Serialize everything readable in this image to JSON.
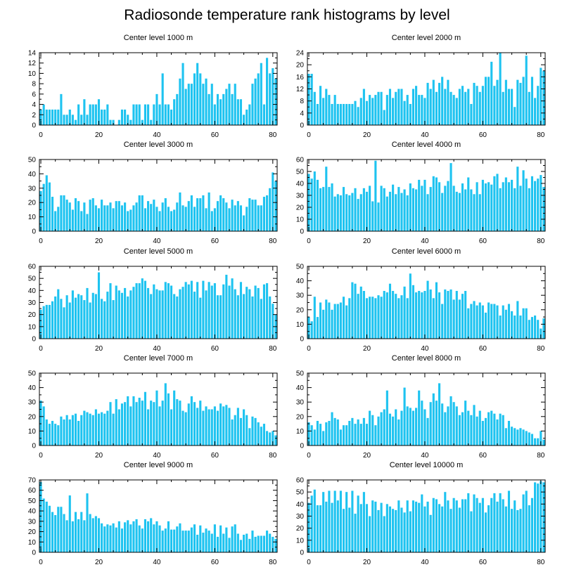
{
  "title": "Radiosonde temperature rank histograms by level",
  "colors": {
    "bar": "#1ec3f0",
    "axis": "#000000",
    "background": "#ffffff"
  },
  "chart_data": [
    {
      "type": "bar",
      "title": "Center level 1000 m",
      "xlabel": "",
      "ylabel": "",
      "xlim": [
        -0.5,
        81.5
      ],
      "ylim": [
        0,
        14
      ],
      "xticks": [
        0,
        20,
        40,
        60,
        80
      ],
      "yticks": [
        0,
        2,
        4,
        6,
        8,
        10,
        12,
        14
      ],
      "x_start": 0,
      "values": [
        3,
        4,
        3,
        3,
        3,
        3,
        3,
        6,
        2,
        2,
        3,
        2,
        1,
        4,
        2,
        5,
        2,
        4,
        4,
        4,
        5,
        3,
        3,
        4,
        1,
        1,
        0,
        1,
        3,
        3,
        2,
        1,
        4,
        4,
        4,
        1,
        4,
        4,
        1,
        4,
        6,
        4,
        10,
        4,
        4,
        3,
        5,
        6,
        9,
        12,
        7,
        8,
        8,
        10,
        12,
        10,
        8,
        9,
        6,
        8,
        4,
        6,
        5,
        6,
        7,
        8,
        6,
        8,
        5,
        5,
        2,
        3,
        4,
        8,
        9,
        10,
        12,
        4,
        13,
        10,
        11,
        9
      ]
    },
    {
      "type": "bar",
      "title": "Center level 2000 m",
      "xlabel": "",
      "ylabel": "",
      "xlim": [
        -0.5,
        81.5
      ],
      "ylim": [
        0,
        24
      ],
      "xticks": [
        0,
        20,
        40,
        60,
        80
      ],
      "yticks": [
        0,
        4,
        8,
        12,
        16,
        20,
        24
      ],
      "x_start": 0,
      "values": [
        17,
        17,
        11,
        7,
        13,
        9,
        12,
        10,
        7,
        10,
        7,
        7,
        7,
        7,
        7,
        7,
        8,
        6,
        9,
        12,
        8,
        10,
        9,
        10,
        11,
        11,
        5,
        10,
        12,
        9,
        11,
        12,
        12,
        8,
        10,
        7,
        12,
        13,
        10,
        10,
        9,
        14,
        12,
        15,
        11,
        14,
        16,
        12,
        15,
        11,
        10,
        9,
        12,
        13,
        11,
        12,
        7,
        14,
        13,
        11,
        13,
        16,
        16,
        21,
        13,
        15,
        24,
        11,
        15,
        12,
        12,
        6,
        15,
        14,
        16,
        23,
        11,
        16,
        9,
        13,
        19,
        18
      ]
    },
    {
      "type": "bar",
      "title": "Center level 3000 m",
      "xlabel": "",
      "ylabel": "",
      "xlim": [
        -0.5,
        81.5
      ],
      "ylim": [
        0,
        50
      ],
      "xticks": [
        0,
        20,
        40,
        60,
        80
      ],
      "yticks": [
        0,
        10,
        20,
        30,
        40,
        50
      ],
      "x_start": 0,
      "values": [
        28,
        33,
        39,
        34,
        24,
        14,
        17,
        25,
        25,
        22,
        20,
        15,
        23,
        21,
        14,
        20,
        12,
        22,
        23,
        18,
        16,
        22,
        18,
        18,
        20,
        16,
        21,
        21,
        18,
        20,
        14,
        15,
        18,
        20,
        25,
        25,
        16,
        21,
        19,
        22,
        17,
        14,
        20,
        23,
        17,
        14,
        15,
        20,
        27,
        18,
        17,
        21,
        25,
        17,
        23,
        23,
        25,
        16,
        27,
        14,
        16,
        21,
        25,
        23,
        20,
        16,
        22,
        18,
        21,
        18,
        11,
        17,
        23,
        22,
        22,
        18,
        18,
        24,
        25,
        30,
        41,
        35
      ]
    },
    {
      "type": "bar",
      "title": "Center level 4000 m",
      "xlabel": "",
      "ylabel": "",
      "xlim": [
        -0.5,
        81.5
      ],
      "ylim": [
        0,
        60
      ],
      "xticks": [
        0,
        20,
        40,
        60,
        80
      ],
      "yticks": [
        0,
        10,
        20,
        30,
        40,
        50,
        60
      ],
      "x_start": 0,
      "values": [
        48,
        44,
        50,
        43,
        36,
        37,
        54,
        37,
        40,
        29,
        31,
        30,
        37,
        31,
        30,
        32,
        36,
        27,
        31,
        36,
        33,
        38,
        25,
        59,
        24,
        38,
        36,
        29,
        33,
        39,
        31,
        37,
        32,
        35,
        30,
        40,
        36,
        35,
        43,
        38,
        43,
        31,
        37,
        46,
        45,
        41,
        32,
        38,
        42,
        57,
        38,
        33,
        32,
        40,
        35,
        45,
        35,
        31,
        41,
        31,
        43,
        40,
        41,
        39,
        46,
        48,
        36,
        41,
        45,
        41,
        43,
        36,
        54,
        38,
        51,
        44,
        36,
        46,
        42,
        44,
        47,
        37
      ]
    },
    {
      "type": "bar",
      "title": "Center level 5000 m",
      "xlabel": "",
      "ylabel": "",
      "xlim": [
        -0.5,
        81.5
      ],
      "ylim": [
        0,
        60
      ],
      "xticks": [
        0,
        20,
        40,
        60,
        80
      ],
      "yticks": [
        0,
        10,
        20,
        30,
        40,
        50,
        60
      ],
      "x_start": 0,
      "values": [
        24,
        27,
        28,
        28,
        31,
        35,
        41,
        33,
        26,
        36,
        30,
        40,
        34,
        37,
        36,
        32,
        42,
        30,
        38,
        37,
        55,
        33,
        31,
        39,
        46,
        32,
        44,
        40,
        38,
        42,
        35,
        40,
        43,
        46,
        46,
        50,
        48,
        42,
        37,
        45,
        41,
        40,
        40,
        47,
        46,
        44,
        37,
        35,
        41,
        43,
        47,
        45,
        48,
        39,
        47,
        34,
        48,
        40,
        47,
        44,
        46,
        36,
        36,
        45,
        53,
        44,
        50,
        41,
        36,
        47,
        37,
        43,
        41,
        35,
        44,
        42,
        33,
        45,
        46,
        35,
        29,
        20
      ]
    },
    {
      "type": "bar",
      "title": "Center level 6000 m",
      "xlabel": "",
      "ylabel": "",
      "xlim": [
        -0.5,
        81.5
      ],
      "ylim": [
        0,
        50
      ],
      "xticks": [
        0,
        20,
        40,
        60,
        80
      ],
      "yticks": [
        0,
        10,
        20,
        30,
        40,
        50
      ],
      "x_start": 0,
      "values": [
        15,
        12,
        29,
        15,
        25,
        20,
        27,
        25,
        20,
        24,
        24,
        25,
        29,
        23,
        28,
        39,
        38,
        31,
        36,
        33,
        28,
        29,
        29,
        28,
        30,
        29,
        33,
        32,
        38,
        33,
        31,
        28,
        30,
        36,
        28,
        45,
        37,
        32,
        33,
        32,
        33,
        40,
        34,
        28,
        39,
        32,
        24,
        34,
        33,
        34,
        27,
        33,
        27,
        31,
        33,
        21,
        24,
        26,
        23,
        25,
        23,
        18,
        25,
        24,
        24,
        23,
        16,
        23,
        20,
        24,
        19,
        16,
        26,
        16,
        21,
        21,
        13,
        15,
        16,
        13,
        7,
        14
      ]
    },
    {
      "type": "bar",
      "title": "Center level 7000 m",
      "xlabel": "",
      "ylabel": "",
      "xlim": [
        -0.5,
        81.5
      ],
      "ylim": [
        0,
        50
      ],
      "xticks": [
        0,
        20,
        40,
        60,
        80
      ],
      "yticks": [
        0,
        10,
        20,
        30,
        40,
        50
      ],
      "x_start": 0,
      "values": [
        31,
        27,
        18,
        15,
        17,
        15,
        14,
        20,
        18,
        21,
        18,
        21,
        22,
        17,
        21,
        24,
        23,
        22,
        21,
        25,
        22,
        23,
        22,
        24,
        30,
        22,
        32,
        25,
        29,
        30,
        34,
        27,
        34,
        30,
        33,
        31,
        37,
        25,
        31,
        30,
        38,
        27,
        31,
        43,
        36,
        25,
        38,
        32,
        31,
        24,
        23,
        29,
        34,
        30,
        26,
        31,
        24,
        27,
        25,
        25,
        27,
        24,
        29,
        27,
        28,
        26,
        18,
        21,
        26,
        19,
        25,
        21,
        12,
        20,
        19,
        16,
        13,
        15,
        10,
        9,
        10,
        7
      ]
    },
    {
      "type": "bar",
      "title": "Center level 8000 m",
      "xlabel": "",
      "ylabel": "",
      "xlim": [
        -0.5,
        81.5
      ],
      "ylim": [
        0,
        50
      ],
      "xticks": [
        0,
        20,
        40,
        60,
        80
      ],
      "yticks": [
        0,
        10,
        20,
        30,
        40,
        50
      ],
      "x_start": 0,
      "values": [
        16,
        14,
        11,
        17,
        15,
        10,
        16,
        17,
        23,
        19,
        18,
        11,
        14,
        14,
        17,
        19,
        15,
        18,
        15,
        19,
        15,
        24,
        21,
        14,
        20,
        23,
        25,
        38,
        22,
        20,
        25,
        18,
        24,
        40,
        27,
        26,
        24,
        26,
        38,
        31,
        25,
        19,
        30,
        36,
        31,
        43,
        29,
        23,
        27,
        34,
        30,
        27,
        21,
        23,
        31,
        24,
        21,
        28,
        20,
        24,
        17,
        19,
        23,
        24,
        22,
        18,
        22,
        21,
        12,
        17,
        13,
        12,
        11,
        12,
        11,
        10,
        9,
        8,
        5,
        5,
        10,
        4
      ]
    },
    {
      "type": "bar",
      "title": "Center level 9000 m",
      "xlabel": "",
      "ylabel": "",
      "xlim": [
        -0.5,
        81.5
      ],
      "ylim": [
        0,
        70
      ],
      "xticks": [
        0,
        20,
        40,
        60,
        80
      ],
      "yticks": [
        0,
        10,
        20,
        30,
        40,
        50,
        60,
        70
      ],
      "x_start": 0,
      "values": [
        68,
        52,
        49,
        45,
        39,
        36,
        44,
        44,
        37,
        31,
        55,
        30,
        39,
        32,
        39,
        31,
        57,
        37,
        33,
        35,
        33,
        28,
        25,
        27,
        26,
        28,
        24,
        30,
        23,
        29,
        31,
        27,
        30,
        32,
        26,
        23,
        32,
        30,
        33,
        27,
        30,
        26,
        21,
        23,
        30,
        22,
        22,
        25,
        28,
        21,
        21,
        21,
        24,
        27,
        17,
        26,
        19,
        23,
        21,
        18,
        27,
        15,
        26,
        18,
        24,
        14,
        25,
        27,
        18,
        12,
        17,
        18,
        13,
        21,
        15,
        16,
        16,
        16,
        21,
        18,
        15,
        13
      ]
    },
    {
      "type": "bar",
      "title": "Center level 10000 m",
      "xlabel": "",
      "ylabel": "",
      "xlim": [
        -0.5,
        81.5
      ],
      "ylim": [
        0,
        60
      ],
      "xticks": [
        0,
        20,
        40,
        60,
        80
      ],
      "yticks": [
        0,
        10,
        20,
        30,
        40,
        50,
        60
      ],
      "x_start": 0,
      "values": [
        41,
        47,
        52,
        39,
        39,
        50,
        42,
        51,
        41,
        51,
        43,
        51,
        36,
        50,
        37,
        51,
        32,
        47,
        40,
        50,
        40,
        30,
        43,
        42,
        35,
        41,
        30,
        40,
        38,
        36,
        35,
        43,
        37,
        33,
        43,
        34,
        43,
        42,
        41,
        48,
        38,
        42,
        31,
        45,
        44,
        40,
        38,
        50,
        43,
        36,
        45,
        43,
        37,
        44,
        44,
        49,
        34,
        48,
        45,
        41,
        45,
        33,
        39,
        45,
        49,
        42,
        49,
        44,
        38,
        51,
        36,
        43,
        35,
        36,
        48,
        51,
        39,
        45,
        58,
        57,
        59,
        58
      ]
    }
  ]
}
